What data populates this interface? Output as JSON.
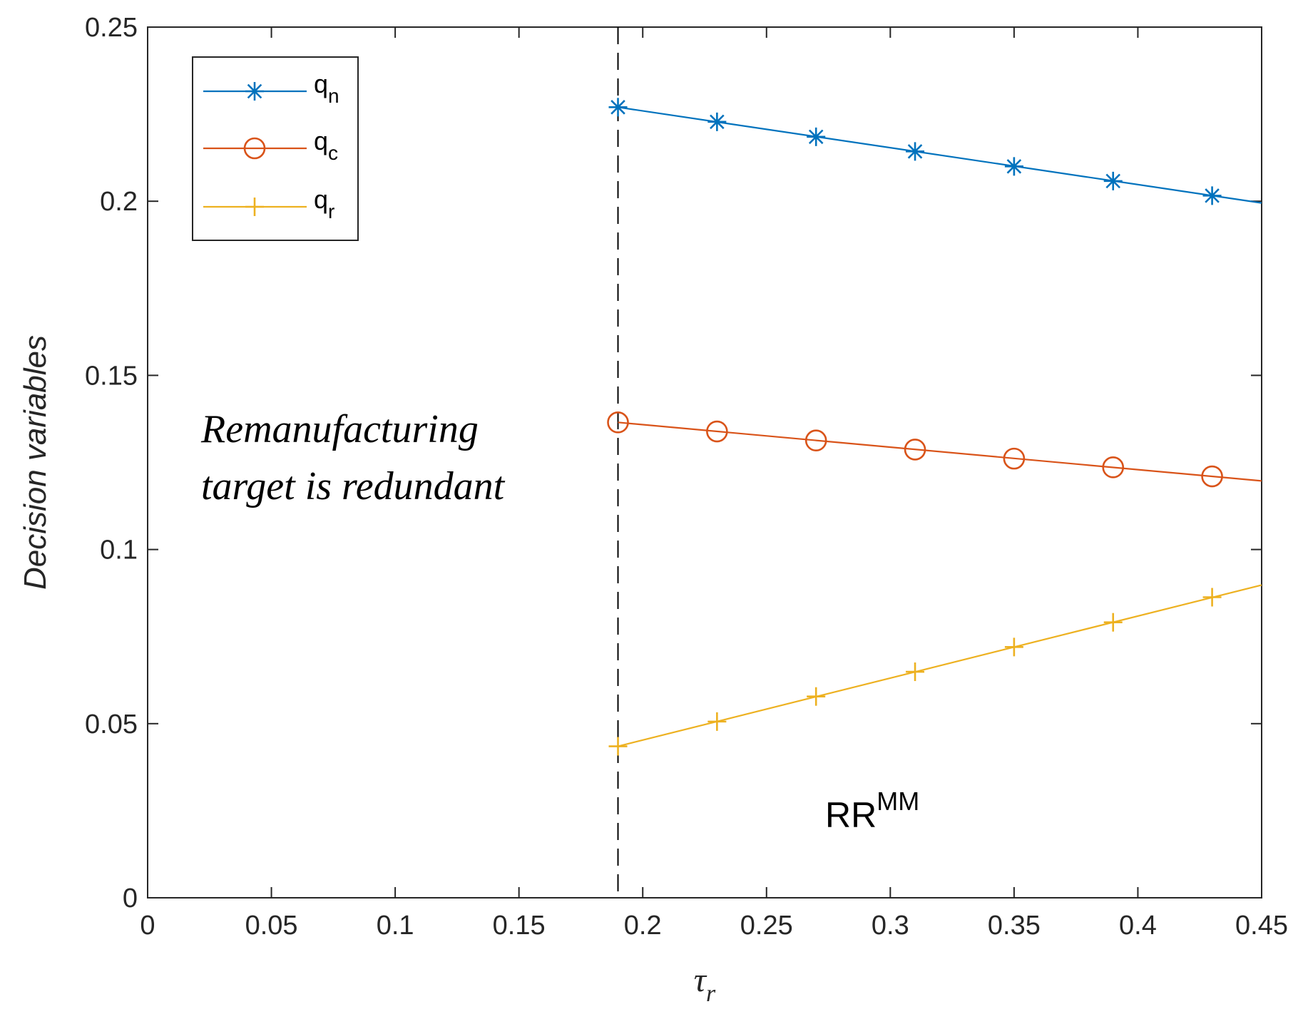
{
  "chart_data": {
    "type": "line",
    "title": "",
    "xlabel": "τ",
    "xlabel_sub": "r",
    "ylabel": "Decision  variables",
    "xlim": [
      0,
      0.45
    ],
    "ylim": [
      0,
      0.25
    ],
    "x_ticks": [
      0,
      0.05,
      0.1,
      0.15,
      0.2,
      0.25,
      0.3,
      0.35,
      0.4,
      0.45
    ],
    "x_tick_labels": [
      "0",
      "0.05",
      "0.1",
      "0.15",
      "0.2",
      "0.25",
      "0.3",
      "0.35",
      "0.4",
      "0.45"
    ],
    "y_ticks": [
      0,
      0.05,
      0.1,
      0.15,
      0.2,
      0.25
    ],
    "y_tick_labels": [
      "0",
      "0.05",
      "0.1",
      "0.15",
      "0.2",
      "0.25"
    ],
    "grid": false,
    "legend_position": "top-left",
    "vline": {
      "x": 0.19,
      "style": "dashed",
      "color": "#000000"
    },
    "series": [
      {
        "name": "q",
        "name_sub": "n",
        "color": "#0072BD",
        "marker": "asterisk",
        "x": [
          0.19,
          0.45
        ],
        "values": [
          0.227,
          0.1995
        ],
        "marker_x": [
          0.19,
          0.23,
          0.27,
          0.31,
          0.35,
          0.39,
          0.43
        ],
        "marker_values": [
          0.227,
          0.2228,
          0.2185,
          0.2143,
          0.21,
          0.2058,
          0.2016
        ]
      },
      {
        "name": "q",
        "name_sub": "c",
        "color": "#D95319",
        "marker": "circle",
        "x": [
          0.19,
          0.45
        ],
        "values": [
          0.1365,
          0.1197
        ],
        "marker_x": [
          0.19,
          0.23,
          0.27,
          0.31,
          0.35,
          0.39,
          0.43
        ],
        "marker_values": [
          0.1365,
          0.1339,
          0.1313,
          0.1287,
          0.1261,
          0.1236,
          0.121
        ]
      },
      {
        "name": "q",
        "name_sub": "r",
        "color": "#EDB120",
        "marker": "plus",
        "x": [
          0.19,
          0.45
        ],
        "values": [
          0.0435,
          0.0898
        ],
        "marker_x": [
          0.19,
          0.23,
          0.27,
          0.31,
          0.35,
          0.39,
          0.43
        ],
        "marker_values": [
          0.0435,
          0.0506,
          0.0578,
          0.0649,
          0.072,
          0.0791,
          0.0863
        ]
      }
    ],
    "annotations": [
      {
        "text_line1": "Remanufacturing",
        "text_line2": "target is redundant"
      },
      {
        "text": "RR",
        "superscript": "MM"
      }
    ]
  }
}
